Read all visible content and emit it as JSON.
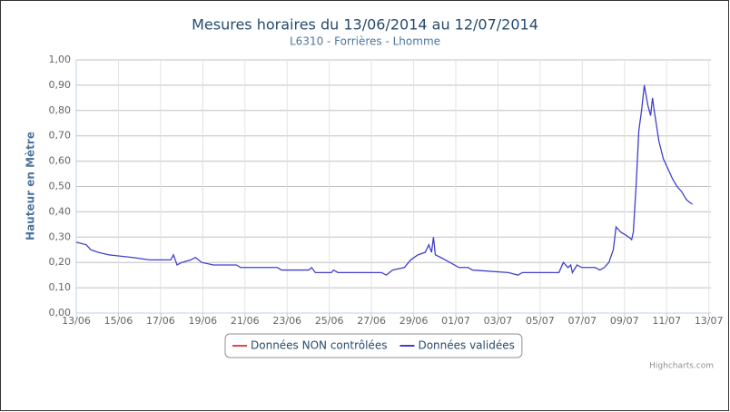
{
  "chart_data": {
    "type": "line",
    "title": "Mesures horaires du 13/06/2014 au 12/07/2014",
    "subtitle": "L6310 - Forrières - Lhomme",
    "y_label": "Hauteur en Mètre",
    "credits": "Highcharts.com",
    "grid": true,
    "legend": "bottom",
    "xlim": [
      0,
      30.1
    ],
    "xticks": [
      {
        "value": 0,
        "label": "13/06"
      },
      {
        "value": 2,
        "label": "15/06"
      },
      {
        "value": 4,
        "label": "17/06"
      },
      {
        "value": 6,
        "label": "19/06"
      },
      {
        "value": 8,
        "label": "21/06"
      },
      {
        "value": 10,
        "label": "23/06"
      },
      {
        "value": 12,
        "label": "25/06"
      },
      {
        "value": 14,
        "label": "27/06"
      },
      {
        "value": 16,
        "label": "29/06"
      },
      {
        "value": 18,
        "label": "01/07"
      },
      {
        "value": 20,
        "label": "03/07"
      },
      {
        "value": 22,
        "label": "05/07"
      },
      {
        "value": 24,
        "label": "07/07"
      },
      {
        "value": 26,
        "label": "09/07"
      },
      {
        "value": 28,
        "label": "11/07"
      },
      {
        "value": 30,
        "label": "13/07"
      }
    ],
    "ylim": [
      0,
      1
    ],
    "yticks": [
      {
        "value": 0,
        "label": "0,00"
      },
      {
        "value": 0.1,
        "label": "0,10"
      },
      {
        "value": 0.2,
        "label": "0,20"
      },
      {
        "value": 0.3,
        "label": "0,30"
      },
      {
        "value": 0.4,
        "label": "0,40"
      },
      {
        "value": 0.5,
        "label": "0,50"
      },
      {
        "value": 0.6,
        "label": "0,60"
      },
      {
        "value": 0.7,
        "label": "0,70"
      },
      {
        "value": 0.8,
        "label": "0,80"
      },
      {
        "value": 0.9,
        "label": "0,90"
      },
      {
        "value": 1,
        "label": "1,00"
      }
    ],
    "series": [
      {
        "name": "Données NON contrôlées",
        "color": "#e8474b",
        "x": [],
        "values": []
      },
      {
        "name": "Données validées",
        "color": "#4040cc",
        "x": [
          0,
          0.47,
          0.69,
          1.03,
          1.55,
          2.63,
          3.49,
          4.48,
          4.61,
          4.78,
          5.0,
          5.43,
          5.65,
          5.95,
          6.51,
          7.59,
          7.8,
          9.53,
          9.74,
          11.03,
          11.16,
          11.34,
          12.1,
          12.2,
          12.41,
          14.48,
          14.7,
          15.0,
          15.56,
          15.86,
          16.2,
          16.55,
          16.72,
          16.85,
          16.94,
          17.03,
          17.28,
          17.72,
          18.15,
          18.58,
          18.8,
          20.5,
          20.95,
          21.16,
          22.89,
          23.1,
          23.32,
          23.45,
          23.53,
          23.75,
          23.97,
          24.6,
          24.83,
          25.04,
          25.26,
          25.47,
          25.6,
          25.82,
          26.03,
          26.2,
          26.34,
          26.42,
          26.55,
          26.68,
          26.81,
          26.94,
          27.11,
          27.24,
          27.33,
          27.41,
          27.63,
          27.84,
          28.06,
          28.28,
          28.49,
          28.71,
          28.92,
          29.05,
          29.22
        ],
        "values": [
          0.28,
          0.27,
          0.25,
          0.24,
          0.23,
          0.22,
          0.21,
          0.21,
          0.23,
          0.19,
          0.2,
          0.21,
          0.22,
          0.2,
          0.19,
          0.19,
          0.18,
          0.18,
          0.17,
          0.17,
          0.18,
          0.16,
          0.16,
          0.17,
          0.16,
          0.16,
          0.15,
          0.17,
          0.18,
          0.21,
          0.23,
          0.24,
          0.27,
          0.24,
          0.3,
          0.23,
          0.22,
          0.2,
          0.18,
          0.18,
          0.17,
          0.16,
          0.15,
          0.16,
          0.16,
          0.2,
          0.18,
          0.19,
          0.16,
          0.19,
          0.18,
          0.18,
          0.17,
          0.18,
          0.2,
          0.25,
          0.34,
          0.32,
          0.31,
          0.3,
          0.29,
          0.32,
          0.5,
          0.72,
          0.8,
          0.9,
          0.82,
          0.78,
          0.85,
          0.8,
          0.68,
          0.61,
          0.57,
          0.53,
          0.5,
          0.48,
          0.45,
          0.44,
          0.43
        ]
      }
    ]
  }
}
